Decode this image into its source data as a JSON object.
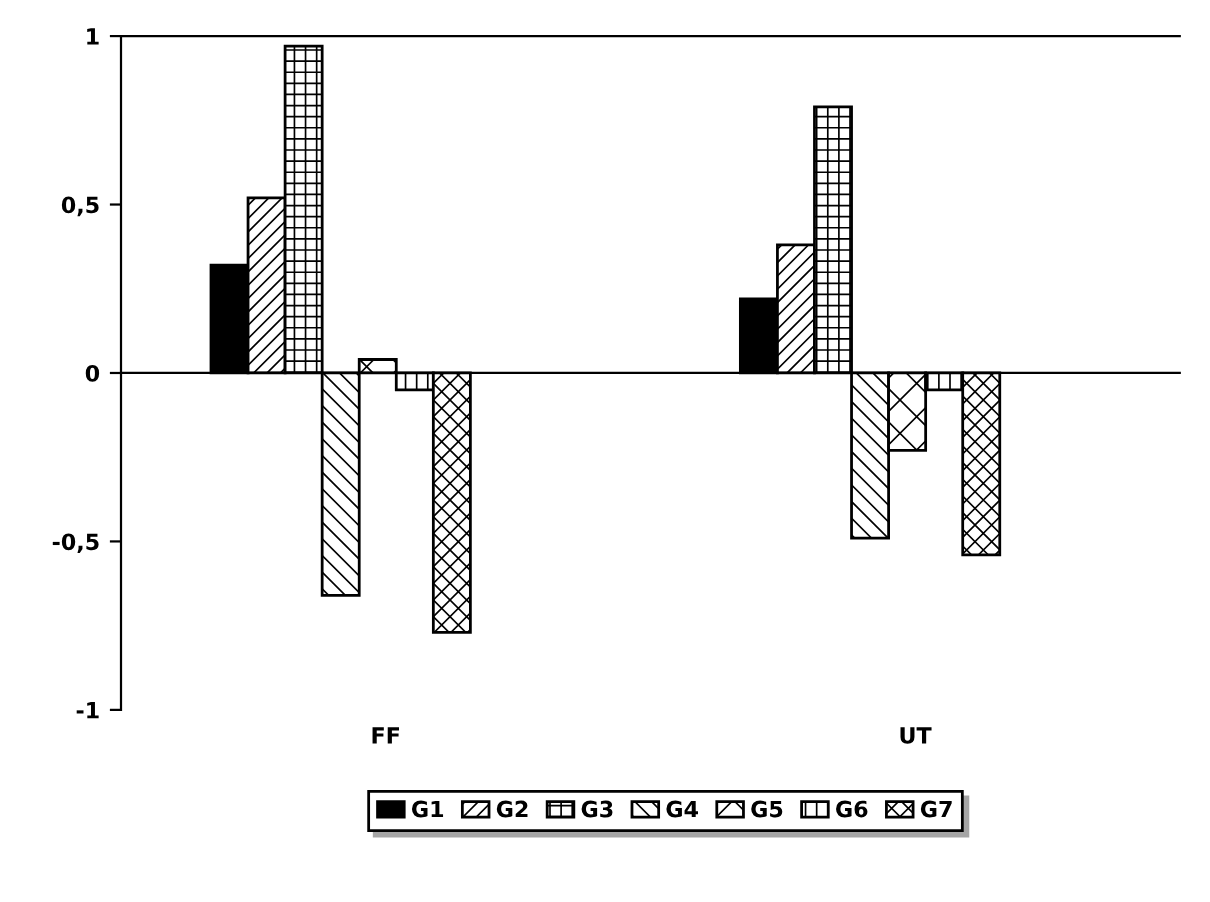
{
  "chart_data": {
    "type": "bar",
    "categories": [
      "FF",
      "UT"
    ],
    "series": [
      {
        "name": "G1",
        "color": "#000000",
        "values": [
          0.32,
          0.22
        ]
      },
      {
        "name": "G2",
        "color": "#000000",
        "values": [
          0.52,
          0.38
        ]
      },
      {
        "name": "G3",
        "color": "#000000",
        "values": [
          0.97,
          0.79
        ]
      },
      {
        "name": "G4",
        "color": "#000000",
        "values": [
          -0.66,
          -0.49
        ]
      },
      {
        "name": "G5",
        "color": "#000000",
        "values": [
          0.04,
          -0.23
        ]
      },
      {
        "name": "G6",
        "color": "#000000",
        "values": [
          -0.05,
          -0.05
        ]
      },
      {
        "name": "G7",
        "color": "#000000",
        "values": [
          -0.77,
          -0.54
        ]
      }
    ],
    "ylim": [
      -1,
      1
    ],
    "yticks": [
      {
        "value": -1,
        "label": "-1"
      },
      {
        "value": -0.5,
        "label": "-0,5"
      },
      {
        "value": 0,
        "label": "0"
      },
      {
        "value": 0.5,
        "label": "0,5"
      },
      {
        "value": 1,
        "label": "1"
      }
    ],
    "legend": "bottom"
  }
}
